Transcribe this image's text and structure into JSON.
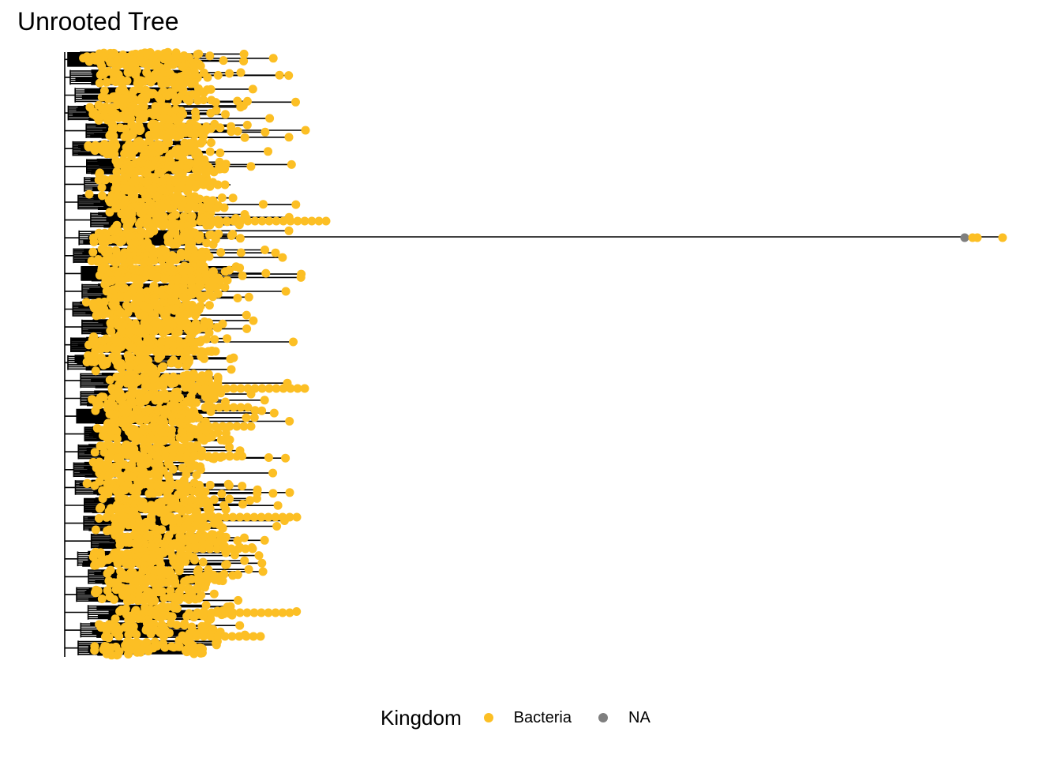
{
  "title": "Unrooted Tree",
  "legend": {
    "title": "Kingdom",
    "items": [
      {
        "label": "Bacteria",
        "color": "#FCBF24"
      },
      {
        "label": "NA",
        "color": "#7F7F7F"
      }
    ]
  },
  "colors": {
    "branch": "#000000",
    "background": "#FFFFFF"
  }
}
